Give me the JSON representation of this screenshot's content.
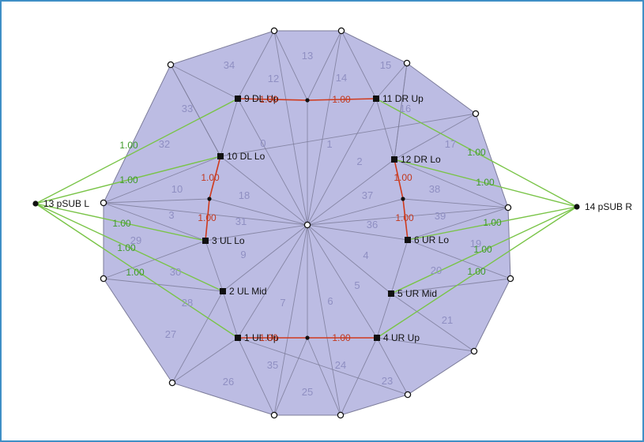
{
  "colors": {
    "frame_border": "#3f8fc6",
    "mesh_fill": "#bcbce3",
    "mesh_edge": "#7c7c9a",
    "green_edge": "#79c447",
    "red_edge": "#d03a1c",
    "triangle_label": "#8f8fc2"
  },
  "diagram": {
    "triangle_labels": [
      "0",
      "1",
      "2",
      "3",
      "4",
      "5",
      "6",
      "7",
      "9",
      "10",
      "12",
      "13",
      "14",
      "15",
      "16",
      "17",
      "18",
      "19",
      "20",
      "21",
      "23",
      "24",
      "25",
      "26",
      "27",
      "28",
      "29",
      "30",
      "31",
      "32",
      "33",
      "34",
      "35",
      "36",
      "37",
      "38",
      "39"
    ],
    "nodes": [
      {
        "id": "1",
        "label": "1 UL Up"
      },
      {
        "id": "2",
        "label": "2 UL Mid"
      },
      {
        "id": "3",
        "label": "3 UL Lo"
      },
      {
        "id": "4",
        "label": "4 UR Up"
      },
      {
        "id": "5",
        "label": "5 UR Mid"
      },
      {
        "id": "6",
        "label": "6 UR Lo"
      },
      {
        "id": "9",
        "label": "9 DL Up"
      },
      {
        "id": "10",
        "label": "10 DL Lo"
      },
      {
        "id": "11",
        "label": "11 DR Up"
      },
      {
        "id": "12",
        "label": "12 DR Lo"
      },
      {
        "id": "13",
        "label": "13 pSUB L"
      },
      {
        "id": "14",
        "label": "14 pSUB R"
      }
    ],
    "red_weights": [
      "1.00",
      "1.00",
      "1.00",
      "1.00",
      "1.00",
      "1.00",
      "1.00",
      "1.00"
    ],
    "green_weights": [
      "1.00",
      "1.00",
      "1.00",
      "1.00",
      "1.00",
      "1.00",
      "1.00",
      "1.00",
      "1.00",
      "1.00"
    ]
  }
}
